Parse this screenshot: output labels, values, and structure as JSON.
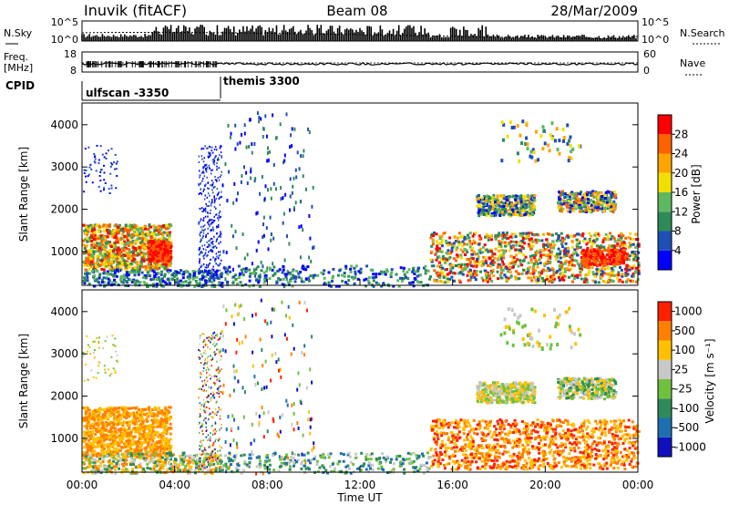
{
  "header": {
    "station": "Inuvik (fitACF)",
    "beam": "Beam 08",
    "date": "28/Mar/2009"
  },
  "summary_panels": {
    "nsky_label": "N.Sky",
    "nsearch_label": "N.Search",
    "nsky_ticks": [
      "10^5",
      "10^0"
    ],
    "nsearch_ticks": [
      "10^5",
      "10^0"
    ],
    "freq_label_1": "Freq.",
    "freq_label_2": "[MHz]",
    "freq_ticks": [
      "18",
      "8"
    ],
    "nave_label": "Nave",
    "nave_ticks": [
      "60",
      "0"
    ],
    "cpid_label": "CPID",
    "cpid_segments": [
      {
        "label": "ulfscan -3350",
        "start_hour": 0
      },
      {
        "label": "themis 3300",
        "start_hour": 6
      }
    ]
  },
  "chart_data": [
    {
      "type": "heatmap",
      "name": "power",
      "ylabel": "Slant Range [km]",
      "yticks": [
        "1000",
        "2000",
        "3000",
        "4000"
      ],
      "colorbar_label": "Power [dB]",
      "colorbar_ticks": [
        "28",
        "24",
        "20",
        "16",
        "12",
        "8",
        "4"
      ],
      "colors": [
        "#0000ff",
        "#1f4fb4",
        "#2e8b57",
        "#5fb85f",
        "#f0e000",
        "#ffa500",
        "#ff6000",
        "#ff0000"
      ]
    },
    {
      "type": "heatmap",
      "name": "velocity",
      "ylabel": "Slant Range [km]",
      "yticks": [
        "1000",
        "2000",
        "3000",
        "4000"
      ],
      "colorbar_label": "Velocity [m s⁻¹]",
      "colorbar_ticks": [
        "1000",
        "500",
        "100",
        "25",
        "-25",
        "-100",
        "-500",
        "-1000"
      ],
      "colors": [
        "#1010c0",
        "#1f6fb0",
        "#2e8b57",
        "#70c040",
        "#c8c8c8",
        "#ffc000",
        "#ff8000",
        "#ff2000"
      ]
    }
  ],
  "xaxis": {
    "ticks": [
      "00:00",
      "04:00",
      "08:00",
      "12:00",
      "16:00",
      "20:00",
      "00:00"
    ],
    "label": "Time UT",
    "range_hours": [
      0,
      24
    ]
  }
}
